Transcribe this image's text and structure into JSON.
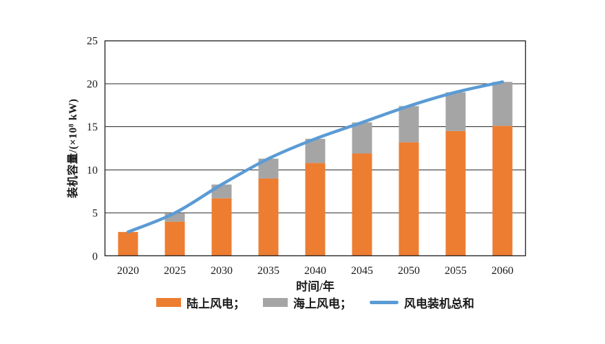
{
  "chart_data": {
    "type": "bar",
    "subtype": "stacked-bars-with-total-line",
    "categories": [
      "2020",
      "2025",
      "2030",
      "2035",
      "2040",
      "2045",
      "2050",
      "2055",
      "2060"
    ],
    "series": [
      {
        "name": "陆上风电",
        "render": "bar",
        "color": "#ED7D31",
        "values": [
          2.8,
          4.0,
          6.7,
          9.0,
          10.8,
          11.9,
          13.2,
          14.5,
          15.1
        ]
      },
      {
        "name": "海上风电",
        "render": "bar",
        "color": "#A5A5A5",
        "values": [
          0.0,
          1.0,
          1.6,
          2.3,
          2.8,
          3.6,
          4.2,
          4.5,
          5.1
        ]
      },
      {
        "name": "风电装机总和",
        "render": "line",
        "color": "#5B9BD5",
        "values": [
          2.8,
          5.0,
          8.3,
          11.3,
          13.6,
          15.5,
          17.4,
          19.0,
          20.2
        ]
      }
    ],
    "title": "",
    "xlabel": "时间/年",
    "ylabel": "装机容量/(×10⁸ kW)",
    "ylim": [
      0,
      25
    ],
    "yticks": [
      0,
      5,
      10,
      15,
      20,
      25
    ],
    "grid": true,
    "legend_position": "bottom"
  },
  "legend": {
    "items": [
      {
        "label": "陆上风电；",
        "swatch": "rect",
        "color": "#ED7D31"
      },
      {
        "label": "海上风电；",
        "swatch": "rect",
        "color": "#A5A5A5"
      },
      {
        "label": "风电装机总和",
        "swatch": "line",
        "color": "#5B9BD5"
      }
    ]
  },
  "colors": {
    "onshore": "#ED7D31",
    "offshore": "#A5A5A5",
    "total_line": "#5B9BD5",
    "grid": "#262626",
    "text": "#1a1a1a",
    "background": "#ffffff"
  }
}
